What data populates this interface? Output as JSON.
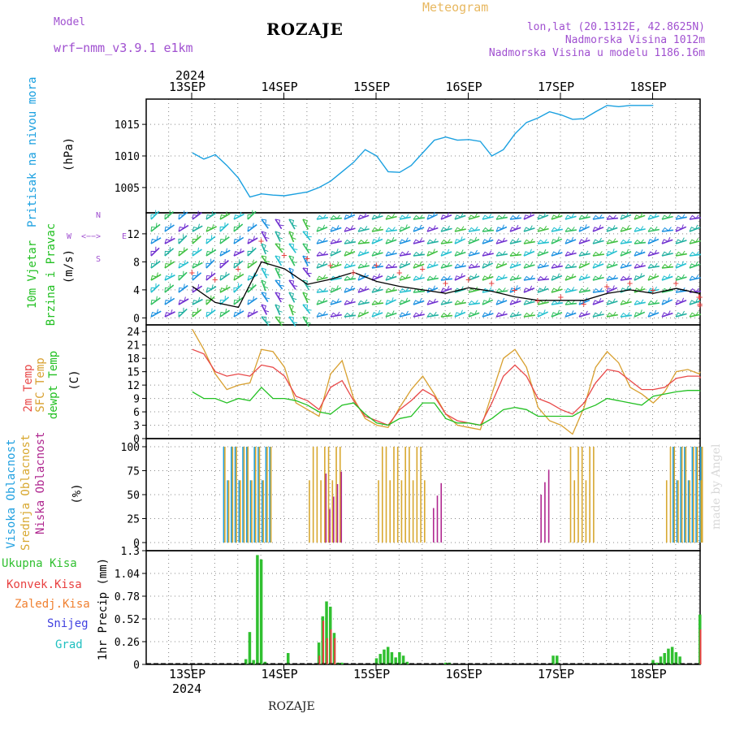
{
  "header": {
    "model_label": "Model",
    "model_name": "wrf−nmm_v3.9.1  e1km",
    "station": "ROZAJE",
    "meteogram": "Meteogram",
    "lonlat": "lon,lat (20.1312E, 42.8625N)",
    "altitude": "Nadmorska Visina 1012m",
    "model_altitude": "Nadmorska Visina u modelu 1186.16m",
    "credit": "made by Angel",
    "footer": "ROZAJE"
  },
  "time_axis": {
    "year": "2024",
    "days": [
      "13SEP",
      "14SEP",
      "15SEP",
      "16SEP",
      "17SEP",
      "18SEP"
    ]
  },
  "panels": {
    "pressure": {
      "label": "Pritisak na nivou mora",
      "unit": "(hPa)"
    },
    "wind": {
      "label1": "10m Vjetar",
      "label2": "Brzina i Pravac",
      "unit": "(m/s)",
      "compass": {
        "n": "N",
        "s": "S",
        "e": "E",
        "w": "W"
      }
    },
    "temp": {
      "label_t2m": "2m Temp",
      "label_sfc": "SFC Temp",
      "label_dew": "dewpt Temp",
      "unit": "(C)"
    },
    "cloud": {
      "label_high": "Visoka Oblacnost",
      "label_mid": "Srednja Oblacnost",
      "label_low": "Niska Oblacnost",
      "unit": "(%)"
    },
    "precip": {
      "unit": "1hr Precip (mm)",
      "legend": [
        "Ukupna Kisa",
        "Konvek.Kisa",
        "Zaledj.Kisa",
        "Snijeg",
        "Grad"
      ]
    }
  },
  "colors": {
    "pressure": "#1aa0e0",
    "t2m": "#e84848",
    "sfc": "#d8a030",
    "dew": "#22c022",
    "cloud_high": "#20a0e0",
    "cloud_mid": "#d8a830",
    "cloud_low": "#b02890",
    "rain_total": "#30c030",
    "rain_conv": "#e84040",
    "rain_frz": "#f08030",
    "snow": "#4040e0",
    "hail": "#20c0c0",
    "gust": "#e84040",
    "wind_speed": "#000000"
  },
  "chart_data": [
    {
      "type": "line",
      "name": "pressure",
      "ylabel": "(hPa)",
      "ylim": [
        1001,
        1019
      ],
      "yticks": [
        1005,
        1010,
        1015
      ],
      "x_hours": [
        0,
        3,
        6,
        9,
        12,
        15,
        18,
        21,
        24,
        27,
        30,
        33,
        36,
        39,
        42,
        45,
        48,
        51,
        54,
        57,
        60,
        63,
        66,
        69,
        72,
        75,
        78,
        81,
        84,
        87,
        90,
        93,
        96,
        99,
        102,
        105,
        108,
        111,
        114,
        117,
        120,
        123,
        126,
        129,
        132,
        135,
        138,
        141,
        144,
        147,
        150
      ],
      "series": [
        {
          "values": [
            1010.5,
            1009.5,
            1010.2,
            1008.5,
            1006.5,
            1003.5,
            1004.0,
            1003.8,
            1003.7,
            1004.0,
            1004.3,
            1005.0,
            1006.0,
            1007.5,
            1009.0,
            1011.0,
            1010.0,
            1007.5,
            1007.4,
            1008.5,
            1010.5,
            1012.5,
            1013.0,
            1012.5,
            1012.6,
            1012.3,
            1010.0,
            1011.0,
            1013.5,
            1015.3,
            1016.0,
            1017.0,
            1016.5,
            1015.8,
            1015.9,
            1017.0,
            1018.0,
            1017.8,
            1018.0,
            1018.0,
            1018.0
          ]
        }
      ]
    },
    {
      "type": "line",
      "name": "wind",
      "ylabel": "(m/s)",
      "ylim": [
        -1,
        15
      ],
      "yticks": [
        0,
        4,
        8,
        12
      ],
      "x_hours": [
        0,
        6,
        12,
        18,
        24,
        30,
        36,
        42,
        48,
        54,
        60,
        66,
        72,
        78,
        84,
        90,
        96,
        102,
        108,
        114,
        120,
        126,
        132,
        138,
        144,
        150
      ],
      "series": [
        {
          "name": "speed",
          "values": [
            4.5,
            2.2,
            1.5,
            8.0,
            7.0,
            4.8,
            5.5,
            6.5,
            5.2,
            4.5,
            4.0,
            3.5,
            4.3,
            3.8,
            3.0,
            2.5,
            2.5,
            2.5,
            3.5,
            4.0,
            3.5,
            4.2,
            3.5,
            2.5,
            2.5,
            3.0
          ]
        },
        {
          "name": "gust",
          "values": [
            6.5,
            5.5,
            7.0,
            11.0,
            9.0,
            8.5,
            7.5,
            6.5,
            7.5,
            6.5,
            7.0,
            5.0,
            5.5,
            5.0,
            4.0,
            2.5,
            3.0,
            2.0,
            4.5,
            5.0,
            4.0,
            5.0,
            3.0,
            2.0,
            1.8,
            3.0
          ]
        }
      ]
    },
    {
      "type": "line",
      "name": "temperature",
      "ylabel": "(C)",
      "ylim": [
        0,
        25.5
      ],
      "yticks": [
        0,
        3,
        6,
        9,
        12,
        15,
        18,
        21,
        24
      ],
      "x_hours": [
        0,
        3,
        6,
        9,
        12,
        15,
        18,
        21,
        24,
        27,
        30,
        33,
        36,
        39,
        42,
        45,
        48,
        51,
        54,
        57,
        60,
        63,
        66,
        69,
        72,
        75,
        78,
        81,
        84,
        87,
        90,
        93,
        96,
        99,
        102,
        105,
        108,
        111,
        114,
        117,
        120,
        123,
        126,
        129,
        132,
        135,
        138,
        141,
        144,
        147,
        150
      ],
      "series": [
        {
          "name": "2m Temp",
          "values": [
            20.0,
            19.0,
            15.0,
            14.0,
            14.5,
            14.0,
            16.5,
            16.0,
            14.0,
            9.5,
            8.5,
            6.5,
            11.5,
            13.0,
            8.5,
            5.0,
            4.0,
            3.0,
            6.5,
            8.5,
            11.0,
            9.5,
            5.5,
            4.0,
            3.5,
            3.0,
            8.0,
            14.0,
            16.5,
            14.0,
            9.0,
            8.0,
            6.5,
            5.5,
            8.0,
            12.5,
            15.5,
            15.0,
            13.0,
            11.0,
            11.0,
            11.5,
            13.5,
            14.0,
            14.0,
            13.8,
            13.5,
            13.8,
            13.6,
            13.8,
            13.8
          ]
        },
        {
          "name": "SFC Temp",
          "values": [
            24.5,
            20.0,
            14.5,
            11.0,
            12.0,
            12.5,
            20.0,
            19.5,
            16.0,
            8.0,
            6.5,
            5.0,
            14.5,
            17.5,
            9.0,
            4.5,
            3.0,
            2.5,
            7.0,
            11.0,
            14.0,
            10.0,
            5.5,
            3.0,
            2.5,
            2.0,
            10.0,
            18.0,
            20.0,
            16.0,
            7.0,
            4.0,
            3.0,
            1.0,
            7.0,
            16.0,
            19.5,
            17.0,
            11.5,
            10.0,
            8.0,
            10.5,
            15.0,
            15.5,
            14.5,
            15.0,
            15.0,
            15.0,
            15.0,
            15.0,
            15.0
          ]
        },
        {
          "name": "dewpt Temp",
          "values": [
            10.5,
            9.0,
            9.0,
            8.0,
            9.0,
            8.5,
            11.5,
            9.0,
            9.0,
            8.5,
            7.5,
            6.0,
            5.5,
            7.5,
            8.0,
            5.5,
            3.5,
            3.0,
            4.5,
            5.0,
            8.0,
            8.0,
            4.5,
            3.5,
            3.5,
            3.0,
            4.5,
            6.5,
            7.0,
            6.5,
            5.0,
            5.0,
            5.0,
            5.0,
            6.5,
            7.5,
            9.0,
            8.5,
            8.0,
            7.5,
            9.5,
            10.0,
            10.5,
            10.8,
            10.8,
            10.6,
            10.6,
            10.6,
            10.6,
            10.6,
            10.6
          ]
        }
      ]
    },
    {
      "type": "bar",
      "name": "cloud",
      "ylabel": "(%)",
      "ylim": [
        0,
        100
      ],
      "yticks": [
        0,
        25,
        50,
        75,
        100
      ],
      "series": [
        {
          "name": "Visoka Oblacnost",
          "intervals": [
            [
              8,
              20
            ],
            [
              125,
              132
            ],
            [
              138,
              150
            ]
          ],
          "value": 100
        },
        {
          "name": "Srednja Oblacnost",
          "intervals": [
            [
              8,
              20
            ],
            [
              30,
              38
            ],
            [
              48,
              60
            ],
            [
              98,
              104
            ],
            [
              123,
              136
            ],
            [
              138,
              150
            ]
          ],
          "value": 100
        },
        {
          "name": "Niska Oblacnost",
          "intervals": [
            [
              34,
              38
            ],
            [
              62,
              64
            ],
            [
              90,
              92
            ]
          ],
          "value": 75
        }
      ]
    },
    {
      "type": "bar",
      "name": "precipitation",
      "ylabel": "1hr Precip (mm)",
      "ylim": [
        0,
        1.3
      ],
      "yticks": [
        0,
        0.26,
        0.52,
        0.78,
        1.04,
        1.3
      ],
      "x_hours": [
        14,
        15,
        16,
        17,
        18,
        19,
        25,
        33,
        34,
        35,
        36,
        37,
        38,
        39,
        48,
        49,
        50,
        51,
        52,
        53,
        54,
        55,
        56,
        66,
        67,
        94,
        95,
        120,
        121,
        122,
        123,
        124,
        125,
        126,
        127,
        146,
        147,
        148,
        149,
        150
      ],
      "series": [
        {
          "name": "Ukupna Kisa",
          "values": [
            0.06,
            0.37,
            0.05,
            1.25,
            1.2,
            0.03,
            0.13,
            0.25,
            0.55,
            0.72,
            0.66,
            0.36,
            0.02,
            0.02,
            0.07,
            0.12,
            0.17,
            0.2,
            0.14,
            0.08,
            0.14,
            0.1,
            0.03,
            0.02,
            0.02,
            0.1,
            0.1,
            0.05,
            0.02,
            0.09,
            0.13,
            0.18,
            0.2,
            0.14,
            0.09,
            0.3,
            0.57,
            0.54,
            0.53,
            0.55
          ]
        },
        {
          "name": "Konvek.Kisa",
          "values": [
            0,
            0,
            0,
            0,
            0,
            0,
            0,
            0.1,
            0.5,
            0.3,
            0.4,
            0.3,
            0,
            0,
            0,
            0,
            0,
            0,
            0,
            0,
            0,
            0,
            0,
            0,
            0,
            0,
            0,
            0,
            0,
            0,
            0,
            0,
            0,
            0,
            0,
            0.2,
            0.5,
            0.5,
            0.5,
            0.4
          ]
        }
      ]
    }
  ]
}
